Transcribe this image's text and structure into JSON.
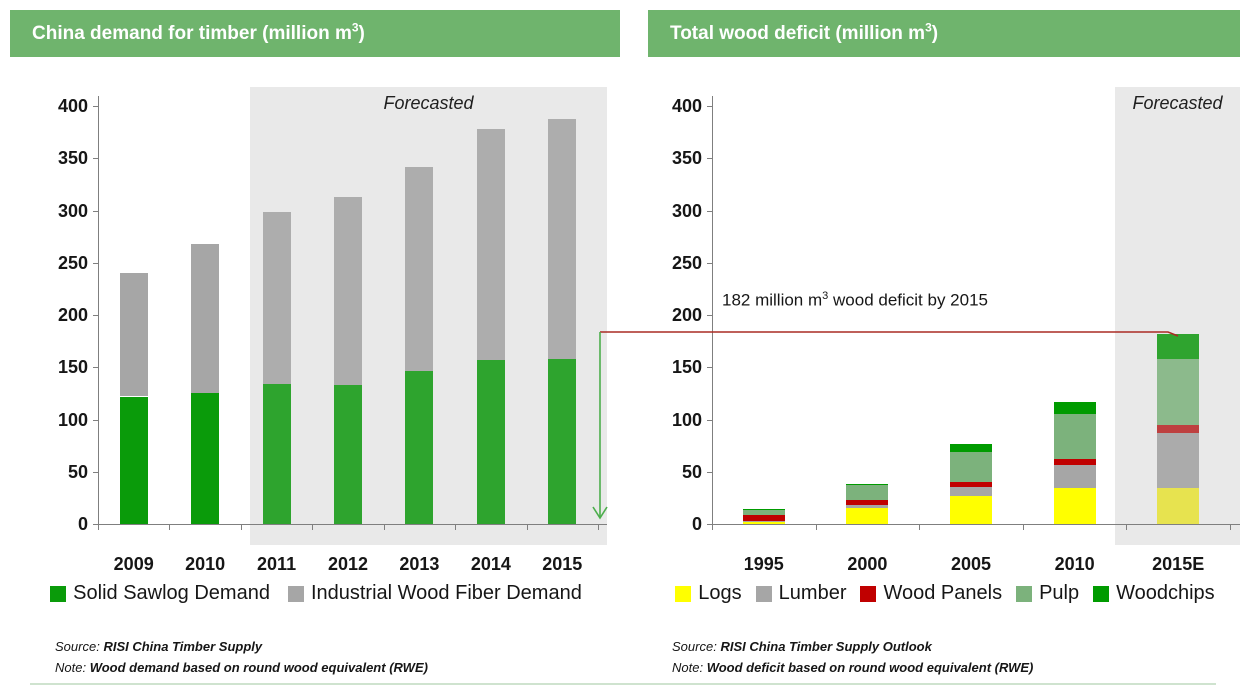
{
  "colors": {
    "header_green": "#6FB46D",
    "forecast_band": "#E9E9E9",
    "axis_gray": "#7F7F7F",
    "annotation_red": "#AA2B24",
    "arrow_green": "#4CAE4C"
  },
  "left_panel": {
    "title": {
      "prefix": "China demand for timber (million m",
      "sup": "3",
      "suffix": ")"
    },
    "forecast_label": "Forecasted",
    "source_label": "Source:",
    "source": "RISI China Timber Supply",
    "note_label": "Note:",
    "note": "Wood demand based on round wood equivalent (RWE)"
  },
  "right_panel": {
    "title": {
      "prefix": "Total wood deficit (million m",
      "sup": "3",
      "suffix": ")"
    },
    "forecast_label": "Forecasted",
    "annotation": {
      "prefix": "182 million m",
      "sup": "3",
      "suffix": " wood deficit by 2015"
    },
    "source_label": "Source:",
    "source": "RISI China Timber Supply Outlook",
    "note_label": "Note:",
    "note": "Wood deficit based on round wood equivalent (RWE)"
  },
  "chart_data": [
    {
      "type": "bar",
      "stacked": true,
      "title": "China demand for timber (million m3)",
      "categories": [
        "2009",
        "2010",
        "2011",
        "2012",
        "2013",
        "2014",
        "2015"
      ],
      "series": [
        {
          "name": "Solid Sawlog Demand",
          "color": "#0A9B0A",
          "color_forecast": "#2EA42E",
          "values": [
            122,
            125,
            134,
            133,
            146,
            157,
            158
          ]
        },
        {
          "name": "Industrial Wood Fiber Demand",
          "color": "#A6A6A6",
          "color_forecast": "#ADADAD",
          "values": [
            118,
            143,
            165,
            180,
            196,
            221,
            230
          ]
        }
      ],
      "forecast_categories": [
        "2011",
        "2012",
        "2013",
        "2014",
        "2015"
      ],
      "forecast_band_label": "Forecasted",
      "ylim": [
        0,
        400
      ],
      "ytick_step": 50,
      "grid": false,
      "legend_position": "bottom"
    },
    {
      "type": "bar",
      "stacked": true,
      "title": "Total wood deficit (million m3)",
      "categories": [
        "1995",
        "2000",
        "2005",
        "2010",
        "2015E"
      ],
      "series": [
        {
          "name": "Logs",
          "color": "#FFFF00",
          "color_forecast": "#E7E34F",
          "values": [
            2,
            15,
            27,
            34,
            34
          ]
        },
        {
          "name": "Lumber",
          "color": "#A6A6A6",
          "color_forecast": "#ABABAB",
          "values": [
            1,
            3,
            8,
            22,
            53
          ]
        },
        {
          "name": "Wood Panels",
          "color": "#C00000",
          "color_forecast": "#BE4040",
          "values": [
            6,
            5,
            5,
            6,
            8
          ]
        },
        {
          "name": "Pulp",
          "color": "#7CB27C",
          "color_forecast": "#8CBA8C",
          "values": [
            4,
            14,
            29,
            43,
            63
          ]
        },
        {
          "name": "Woodchips",
          "color": "#009B00",
          "color_forecast": "#2FA42F",
          "values": [
            1,
            1,
            8,
            12,
            24
          ]
        }
      ],
      "forecast_categories": [
        "2015E"
      ],
      "forecast_band_label": "Forecasted",
      "annotation": "182 million m3 wood deficit by 2015",
      "annotation_value": 182,
      "ylim": [
        0,
        400
      ],
      "ytick_step": 50,
      "grid": false,
      "legend_position": "bottom"
    }
  ]
}
